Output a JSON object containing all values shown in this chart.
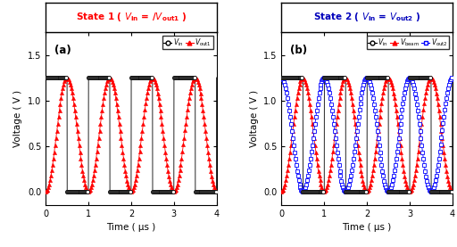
{
  "title1_color": "#FF0000",
  "title2_color": "#0000BB",
  "xlabel": "Time ( μs )",
  "ylabel": "Voltage ( V )",
  "xlim": [
    0,
    4
  ],
  "ylim": [
    -0.15,
    1.75
  ],
  "yticks": [
    0.0,
    0.5,
    1.0,
    1.5
  ],
  "xticks": [
    0,
    1,
    2,
    3,
    4
  ],
  "panel_a_label": "(a)",
  "panel_b_label": "(b)",
  "Vin_high": 1.25,
  "Vin_low": 0.0,
  "period": 1.0,
  "n_points": 4000,
  "t_max": 4.0,
  "color_vin": "#000000",
  "color_vout1": "#FF0000",
  "color_vbeam": "#FF0000",
  "color_vout2": "#0000FF",
  "figsize": [
    5.12,
    2.77
  ],
  "dpi": 100
}
